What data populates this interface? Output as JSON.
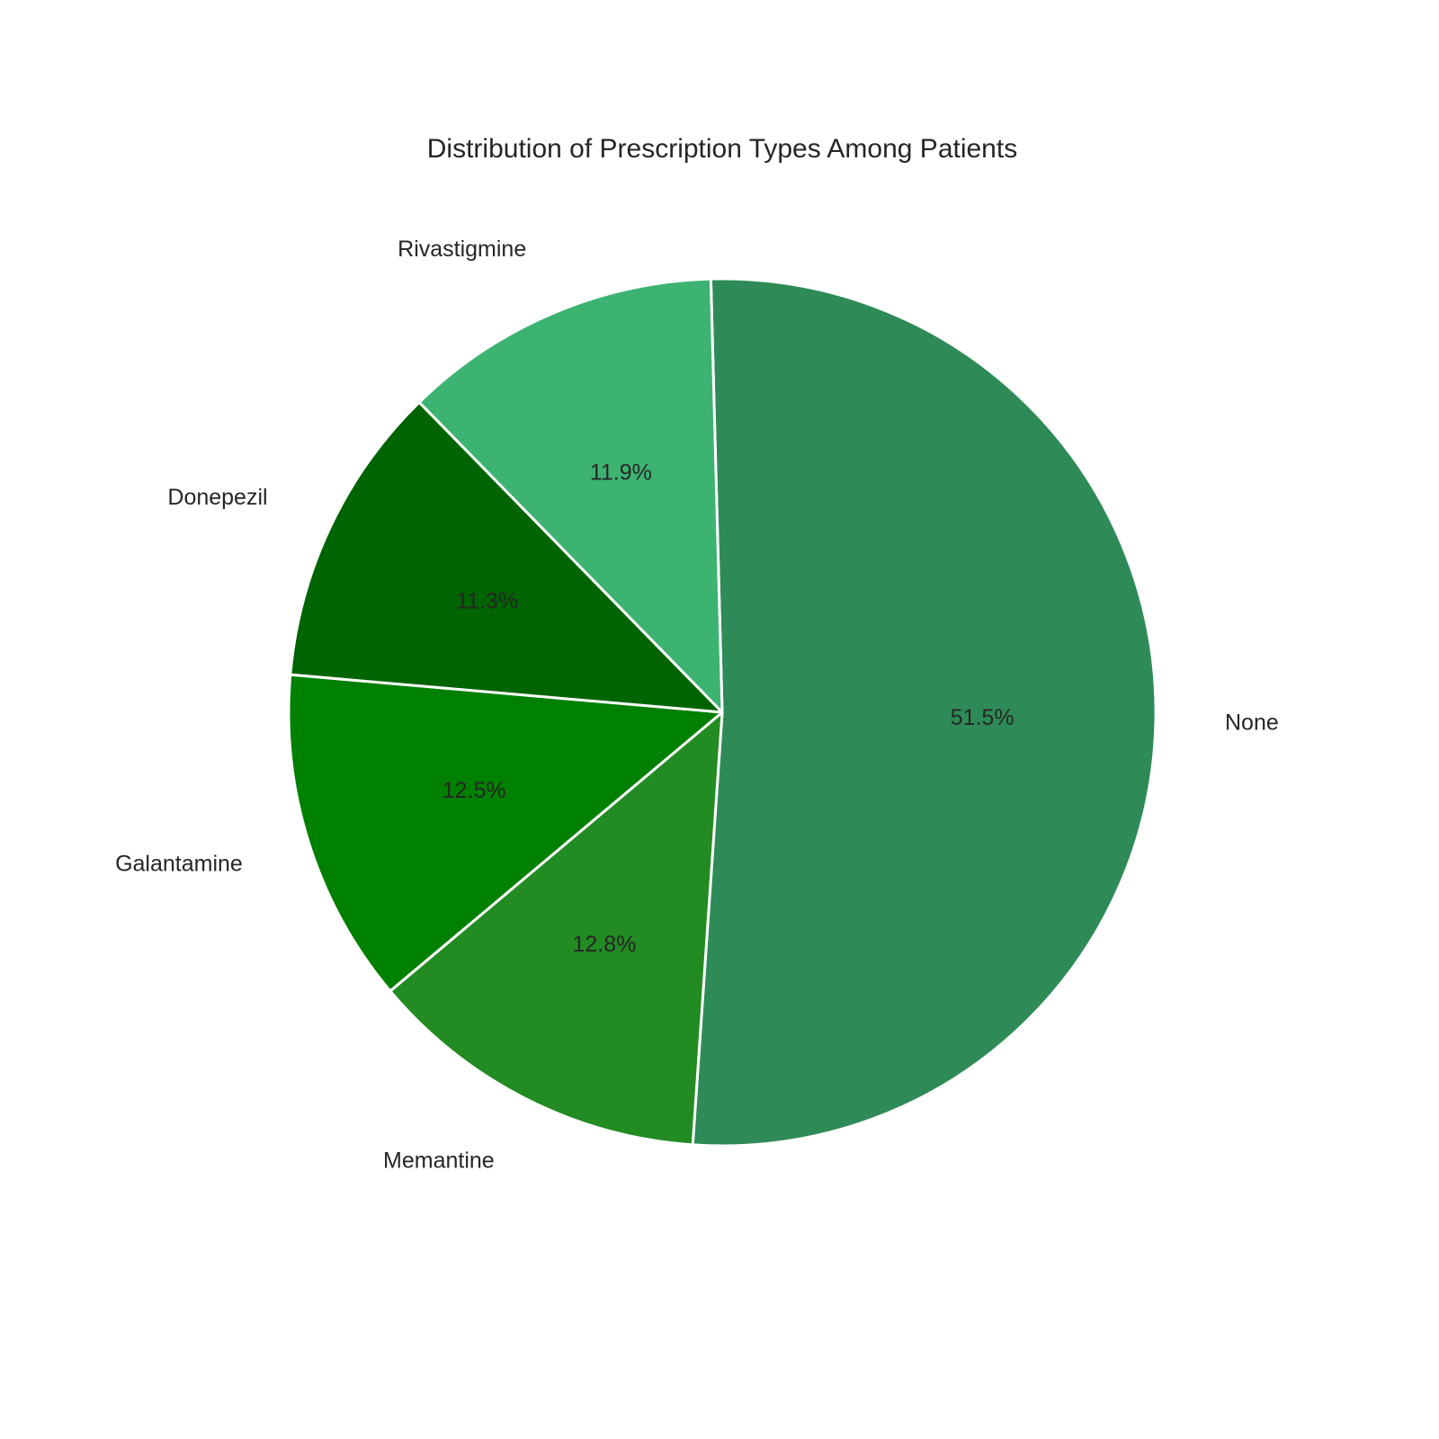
{
  "chart_data": {
    "type": "pie",
    "title": "Distribution of Prescription Types Among Patients",
    "start_angle_deg": 91.5,
    "direction": "clockwise",
    "edge_color": "#ffffff",
    "slices": [
      {
        "label": "None",
        "value": 51.5,
        "pct_text": "51.5%",
        "color": "#2e8b57"
      },
      {
        "label": "Memantine",
        "value": 12.8,
        "pct_text": "12.8%",
        "color": "#228b22"
      },
      {
        "label": "Galantamine",
        "value": 12.5,
        "pct_text": "12.5%",
        "color": "#008000"
      },
      {
        "label": "Donepezil",
        "value": 11.3,
        "pct_text": "11.3%",
        "color": "#006400"
      },
      {
        "label": "Rivastigmine",
        "value": 11.9,
        "pct_text": "11.9%",
        "color": "#3cb371"
      }
    ]
  }
}
